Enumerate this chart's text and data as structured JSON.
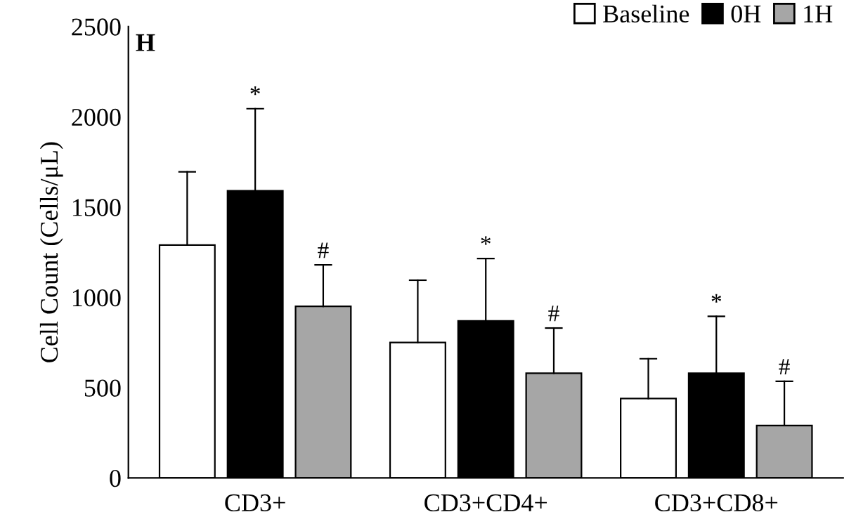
{
  "chart_data": {
    "type": "bar",
    "ylabel": "Cell Count (Cells/μL)",
    "categories": [
      "CD3+",
      "CD3+CD4+",
      "CD3+CD8+"
    ],
    "series": [
      {
        "name": "Baseline",
        "color": "#ffffff",
        "values": [
          1290,
          750,
          440
        ],
        "errors": [
          [
            1290,
            1695
          ],
          [
            750,
            1095
          ],
          [
            440,
            660
          ]
        ]
      },
      {
        "name": "0H",
        "color": "#000000",
        "values": [
          1590,
          870,
          580
        ],
        "errors": [
          [
            1590,
            2045
          ],
          [
            870,
            1215
          ],
          [
            580,
            895
          ]
        ]
      },
      {
        "name": "1H",
        "color": "#a6a6a6",
        "values": [
          950,
          580,
          290
        ],
        "errors": [
          [
            950,
            1180
          ],
          [
            580,
            830
          ],
          [
            290,
            535
          ]
        ]
      }
    ],
    "ylim": [
      0,
      2500
    ],
    "yticks": [
      0,
      500,
      1000,
      1500,
      2000,
      2500
    ],
    "grid": false,
    "legend": "top right",
    "annotations": [
      "H",
      "*",
      "#",
      "*",
      "#",
      "*",
      "#"
    ]
  }
}
